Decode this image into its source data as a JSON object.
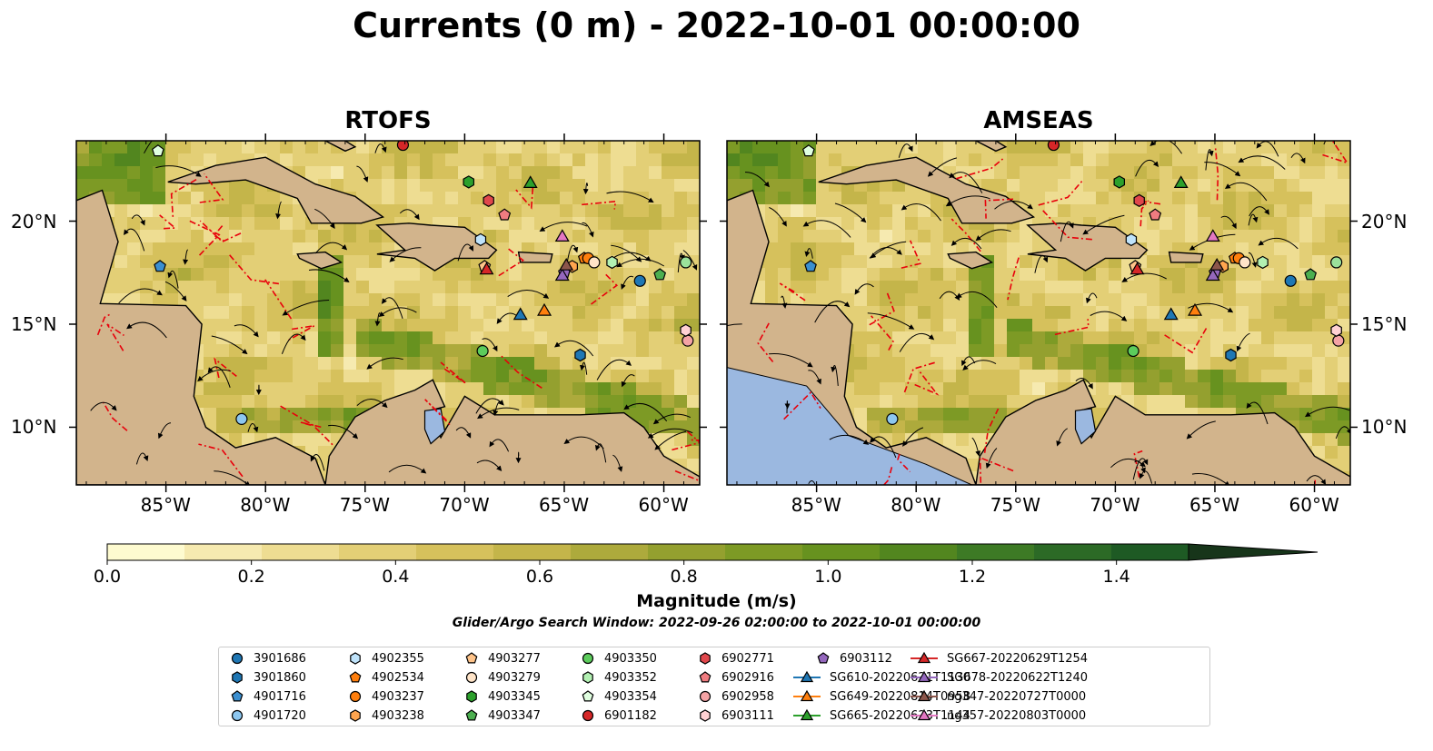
{
  "title": "Currents (0 m) - 2022-10-01 00:00:00",
  "panels": [
    {
      "title": "RTOFS"
    },
    {
      "title": "AMSEAS"
    }
  ],
  "colors": {
    "land": "#d2b48c",
    "ocean_mask": "#9bb8e0",
    "eez_line": "#e8000b",
    "streamline": "#000000",
    "river": "#8aa8c8"
  },
  "chart_data": {
    "type": "heatmap",
    "variable": "Currents (0 m)",
    "colorbar": {
      "label": "Magnitude (m/s)",
      "range": [
        0.0,
        1.5
      ],
      "ticks": [
        "0.0",
        "0.2",
        "0.4",
        "0.6",
        "0.8",
        "1.0",
        "1.2",
        "1.4"
      ],
      "tick_values": [
        0.0,
        0.2,
        0.4,
        0.6,
        0.8,
        1.0,
        1.2,
        1.4
      ],
      "extend": "max",
      "colors": [
        "#fefbd0",
        "#f6eab0",
        "#eedd92",
        "#e3cf76",
        "#d6c15c",
        "#c4b54a",
        "#adaa3c",
        "#94a02f",
        "#7d9a25",
        "#67921f",
        "#52861f",
        "#3d7a25",
        "#2c6a26",
        "#1e5a24",
        "#1a4a22",
        "#17351a"
      ]
    },
    "x_ticks": [
      "85°W",
      "80°W",
      "75°W",
      "70°W",
      "65°W",
      "60°W"
    ],
    "x_tick_values": [
      -85,
      -80,
      -75,
      -70,
      -65,
      -60
    ],
    "y_ticks": [
      "20°N",
      "15°N",
      "10°N"
    ],
    "y_tick_values": [
      20,
      15,
      10
    ],
    "xlim": [
      -89.5,
      -58.2
    ],
    "ylim": [
      7.2,
      23.9
    ],
    "search_window": "Glider/Argo Search Window: 2022-09-26 02:00:00 to 2022-10-01 00:00:00",
    "markers": [
      {
        "id": "3901686",
        "type": "argo",
        "shape": "circle",
        "color": "#1f77b4",
        "lon": -61.2,
        "lat": 17.1
      },
      {
        "id": "3901860",
        "type": "argo",
        "shape": "hexagon",
        "color": "#1f77b4",
        "lon": -64.2,
        "lat": 13.5
      },
      {
        "id": "4901716",
        "type": "argo",
        "shape": "pentagon",
        "color": "#3b8fd0",
        "lon": -85.3,
        "lat": 17.8
      },
      {
        "id": "4901720",
        "type": "argo",
        "shape": "circle",
        "color": "#8dc7f0",
        "lon": -81.2,
        "lat": 10.4
      },
      {
        "id": "4902355",
        "type": "argo",
        "shape": "hexagon",
        "color": "#bfe3fb",
        "lon": -69.2,
        "lat": 19.1
      },
      {
        "id": "4902534",
        "type": "argo",
        "shape": "pentagon",
        "color": "#ff7f0e",
        "lon": -64.0,
        "lat": 18.2
      },
      {
        "id": "4903237",
        "type": "argo",
        "shape": "circle",
        "color": "#ff7f0e",
        "lon": -63.8,
        "lat": 18.2
      },
      {
        "id": "4903238",
        "type": "argo",
        "shape": "hexagon",
        "color": "#ffa54f",
        "lon": -64.6,
        "lat": 17.8
      },
      {
        "id": "4903277",
        "type": "argo",
        "shape": "pentagon",
        "color": "#ffc48a",
        "lon": -69.0,
        "lat": 17.8
      },
      {
        "id": "4903279",
        "type": "argo",
        "shape": "circle",
        "color": "#ffe4c8",
        "lon": -63.5,
        "lat": 18.0
      },
      {
        "id": "4903350",
        "type": "argo",
        "shape": "circle",
        "color": "#5ccc5c",
        "lon": -69.1,
        "lat": 13.7
      },
      {
        "id": "4903352",
        "type": "argo",
        "shape": "hexagon",
        "color": "#b2f0b2",
        "lon": -62.6,
        "lat": 18.0
      },
      {
        "id": "4903354",
        "type": "argo",
        "shape": "pentagon",
        "color": "#e0ffe0",
        "lon": -85.4,
        "lat": 23.4
      },
      {
        "id": "4903345",
        "type": "argo",
        "shape": "hexagon",
        "color": "#2ca02c",
        "lon": -69.8,
        "lat": 21.9
      },
      {
        "id": "4903347",
        "type": "argo",
        "shape": "pentagon",
        "color": "#4caf50",
        "lon": -60.2,
        "lat": 17.4
      },
      {
        "id": "6901182",
        "type": "argo",
        "shape": "circle",
        "color": "#d62728",
        "lon": -73.1,
        "lat": 23.7
      },
      {
        "id": "6902771",
        "type": "argo",
        "shape": "hexagon",
        "color": "#e0474c",
        "lon": -68.8,
        "lat": 21.0
      },
      {
        "id": "6902916",
        "type": "argo",
        "shape": "pentagon",
        "color": "#f07c80",
        "lon": -68.0,
        "lat": 20.3
      },
      {
        "id": "6902958",
        "type": "argo",
        "shape": "circle",
        "color": "#f4a3a5",
        "lon": -58.8,
        "lat": 14.2
      },
      {
        "id": "6903111",
        "type": "argo",
        "shape": "hexagon",
        "color": "#ffd1d3",
        "lon": -58.9,
        "lat": 14.7
      },
      {
        "id": "6903112",
        "type": "argo",
        "shape": "pentagon",
        "color": "#9467bd",
        "lon": -65.0,
        "lat": 17.5
      },
      {
        "id": "4903347b",
        "type": "argo",
        "shape": "circle",
        "color": "#9be29b",
        "lon": -58.9,
        "lat": 18.0
      }
    ],
    "gliders": [
      {
        "id": "SG610-20220621T1130",
        "color": "#1f77b4",
        "lon": -67.2,
        "lat": 15.5
      },
      {
        "id": "SG649-20220814T0958",
        "color": "#ff7f0e",
        "lon": -66.0,
        "lat": 15.7
      },
      {
        "id": "SG665-20220623T1144",
        "color": "#2ca02c",
        "lon": -66.7,
        "lat": 21.9
      },
      {
        "id": "SG667-20220629T1254",
        "color": "#d62728",
        "lon": -68.9,
        "lat": 17.7
      },
      {
        "id": "SG678-20220622T1240",
        "color": "#9467bd",
        "lon": -65.1,
        "lat": 17.4
      },
      {
        "id": "ng347-20220727T0000",
        "color": "#8c564b",
        "lon": -64.9,
        "lat": 17.9
      },
      {
        "id": "ng357-20220803T0000",
        "color": "#e377c2",
        "lon": -65.1,
        "lat": 19.3
      }
    ]
  },
  "legend": {
    "items": [
      {
        "label": "3901686",
        "shape": "circle",
        "color": "#1f77b4"
      },
      {
        "label": "3901860",
        "shape": "hexagon",
        "color": "#1f77b4"
      },
      {
        "label": "4901716",
        "shape": "pentagon",
        "color": "#3b8fd0"
      },
      {
        "label": "4901720",
        "shape": "circle",
        "color": "#8dc7f0"
      },
      {
        "label": "4902355",
        "shape": "hexagon",
        "color": "#bfe3fb"
      },
      {
        "label": "4902534",
        "shape": "pentagon",
        "color": "#ff7f0e"
      },
      {
        "label": "4903237",
        "shape": "circle",
        "color": "#ff7f0e"
      },
      {
        "label": "4903238",
        "shape": "hexagon",
        "color": "#ffa54f"
      },
      {
        "label": "4903277",
        "shape": "pentagon",
        "color": "#ffc48a"
      },
      {
        "label": "4903279",
        "shape": "circle",
        "color": "#ffe4c8"
      },
      {
        "label": "4903345",
        "shape": "hexagon",
        "color": "#2ca02c"
      },
      {
        "label": "4903347",
        "shape": "pentagon",
        "color": "#4caf50"
      },
      {
        "label": "4903350",
        "shape": "circle",
        "color": "#5ccc5c"
      },
      {
        "label": "4903352",
        "shape": "hexagon",
        "color": "#b2f0b2"
      },
      {
        "label": "4903354",
        "shape": "pentagon",
        "color": "#e0ffe0"
      },
      {
        "label": "6901182",
        "shape": "circle",
        "color": "#d62728"
      },
      {
        "label": "6902771",
        "shape": "hexagon",
        "color": "#e0474c"
      },
      {
        "label": "6902916",
        "shape": "pentagon",
        "color": "#f07c80"
      },
      {
        "label": "6902958",
        "shape": "circle",
        "color": "#f4a3a5"
      },
      {
        "label": "6903111",
        "shape": "hexagon",
        "color": "#ffd1d3"
      },
      {
        "label": "6903112",
        "shape": "pentagon",
        "color": "#9467bd"
      },
      {
        "label": "SG610-20220621T1130",
        "shape": "triangle",
        "color": "#1f77b4"
      },
      {
        "label": "SG649-20220814T0958",
        "shape": "triangle",
        "color": "#ff7f0e"
      },
      {
        "label": "SG665-20220623T1144",
        "shape": "triangle",
        "color": "#2ca02c"
      },
      {
        "label": "SG667-20220629T1254",
        "shape": "triangle",
        "color": "#d62728"
      },
      {
        "label": "SG678-20220622T1240",
        "shape": "triangle",
        "color": "#9467bd"
      },
      {
        "label": "ng347-20220727T0000",
        "shape": "triangle",
        "color": "#8c564b"
      },
      {
        "label": "ng357-20220803T0000",
        "shape": "triangle",
        "color": "#e377c2"
      }
    ]
  }
}
